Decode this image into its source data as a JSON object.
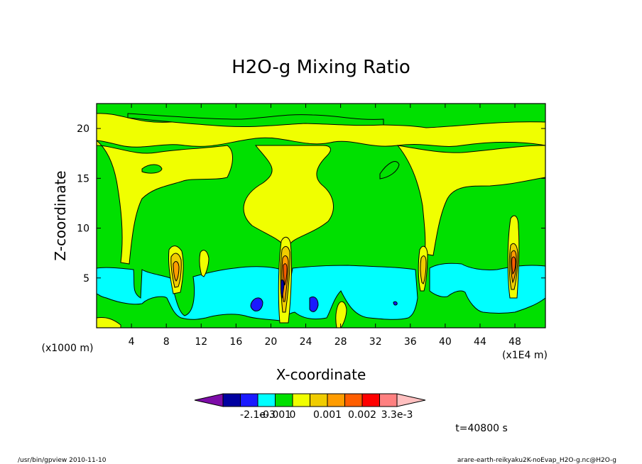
{
  "chart_data": {
    "type": "heatmap",
    "title": "H2O-g Mixing Ratio",
    "xlabel": "X-coordinate",
    "ylabel": "Z-coordinate",
    "x_unit_left": "(x1000 m)",
    "x_unit_right": "(x1E4 m)",
    "xlim": [
      0,
      51.5
    ],
    "ylim": [
      0,
      22.5
    ],
    "x_ticks": [
      4,
      8,
      12,
      16,
      20,
      24,
      28,
      32,
      36,
      40,
      44,
      48
    ],
    "y_ticks": [
      5,
      10,
      15,
      20
    ],
    "colorbar": {
      "colors": [
        "#7d0ca8",
        "#0000a0",
        "#1a1aff",
        "#00ffff",
        "#00e000",
        "#f0ff00",
        "#f0cc00",
        "#ff9c00",
        "#ff5e00",
        "#ff0000",
        "#ff8080",
        "#ffc0c0"
      ],
      "labels": [
        "-2.1e-3",
        "-0.001",
        "0",
        "0.001",
        "0.002",
        "3.3e-3"
      ],
      "label_after_box": [
        2,
        3,
        4,
        6,
        8,
        10
      ]
    },
    "regions_note": "Background green ~0; yellow band aloft z 19-22.5; blue (moist-negative) layer z ~1.5-6; orange/red plumes at x ~9, 21, 37, 47.5",
    "time_label": "t=40800 s"
  },
  "footer": {
    "left": "/usr/bin/gpview   2010-11-10",
    "right": "arare-earth-reikyaku2K-noEvap_H2O-g.nc@H2O-g"
  }
}
